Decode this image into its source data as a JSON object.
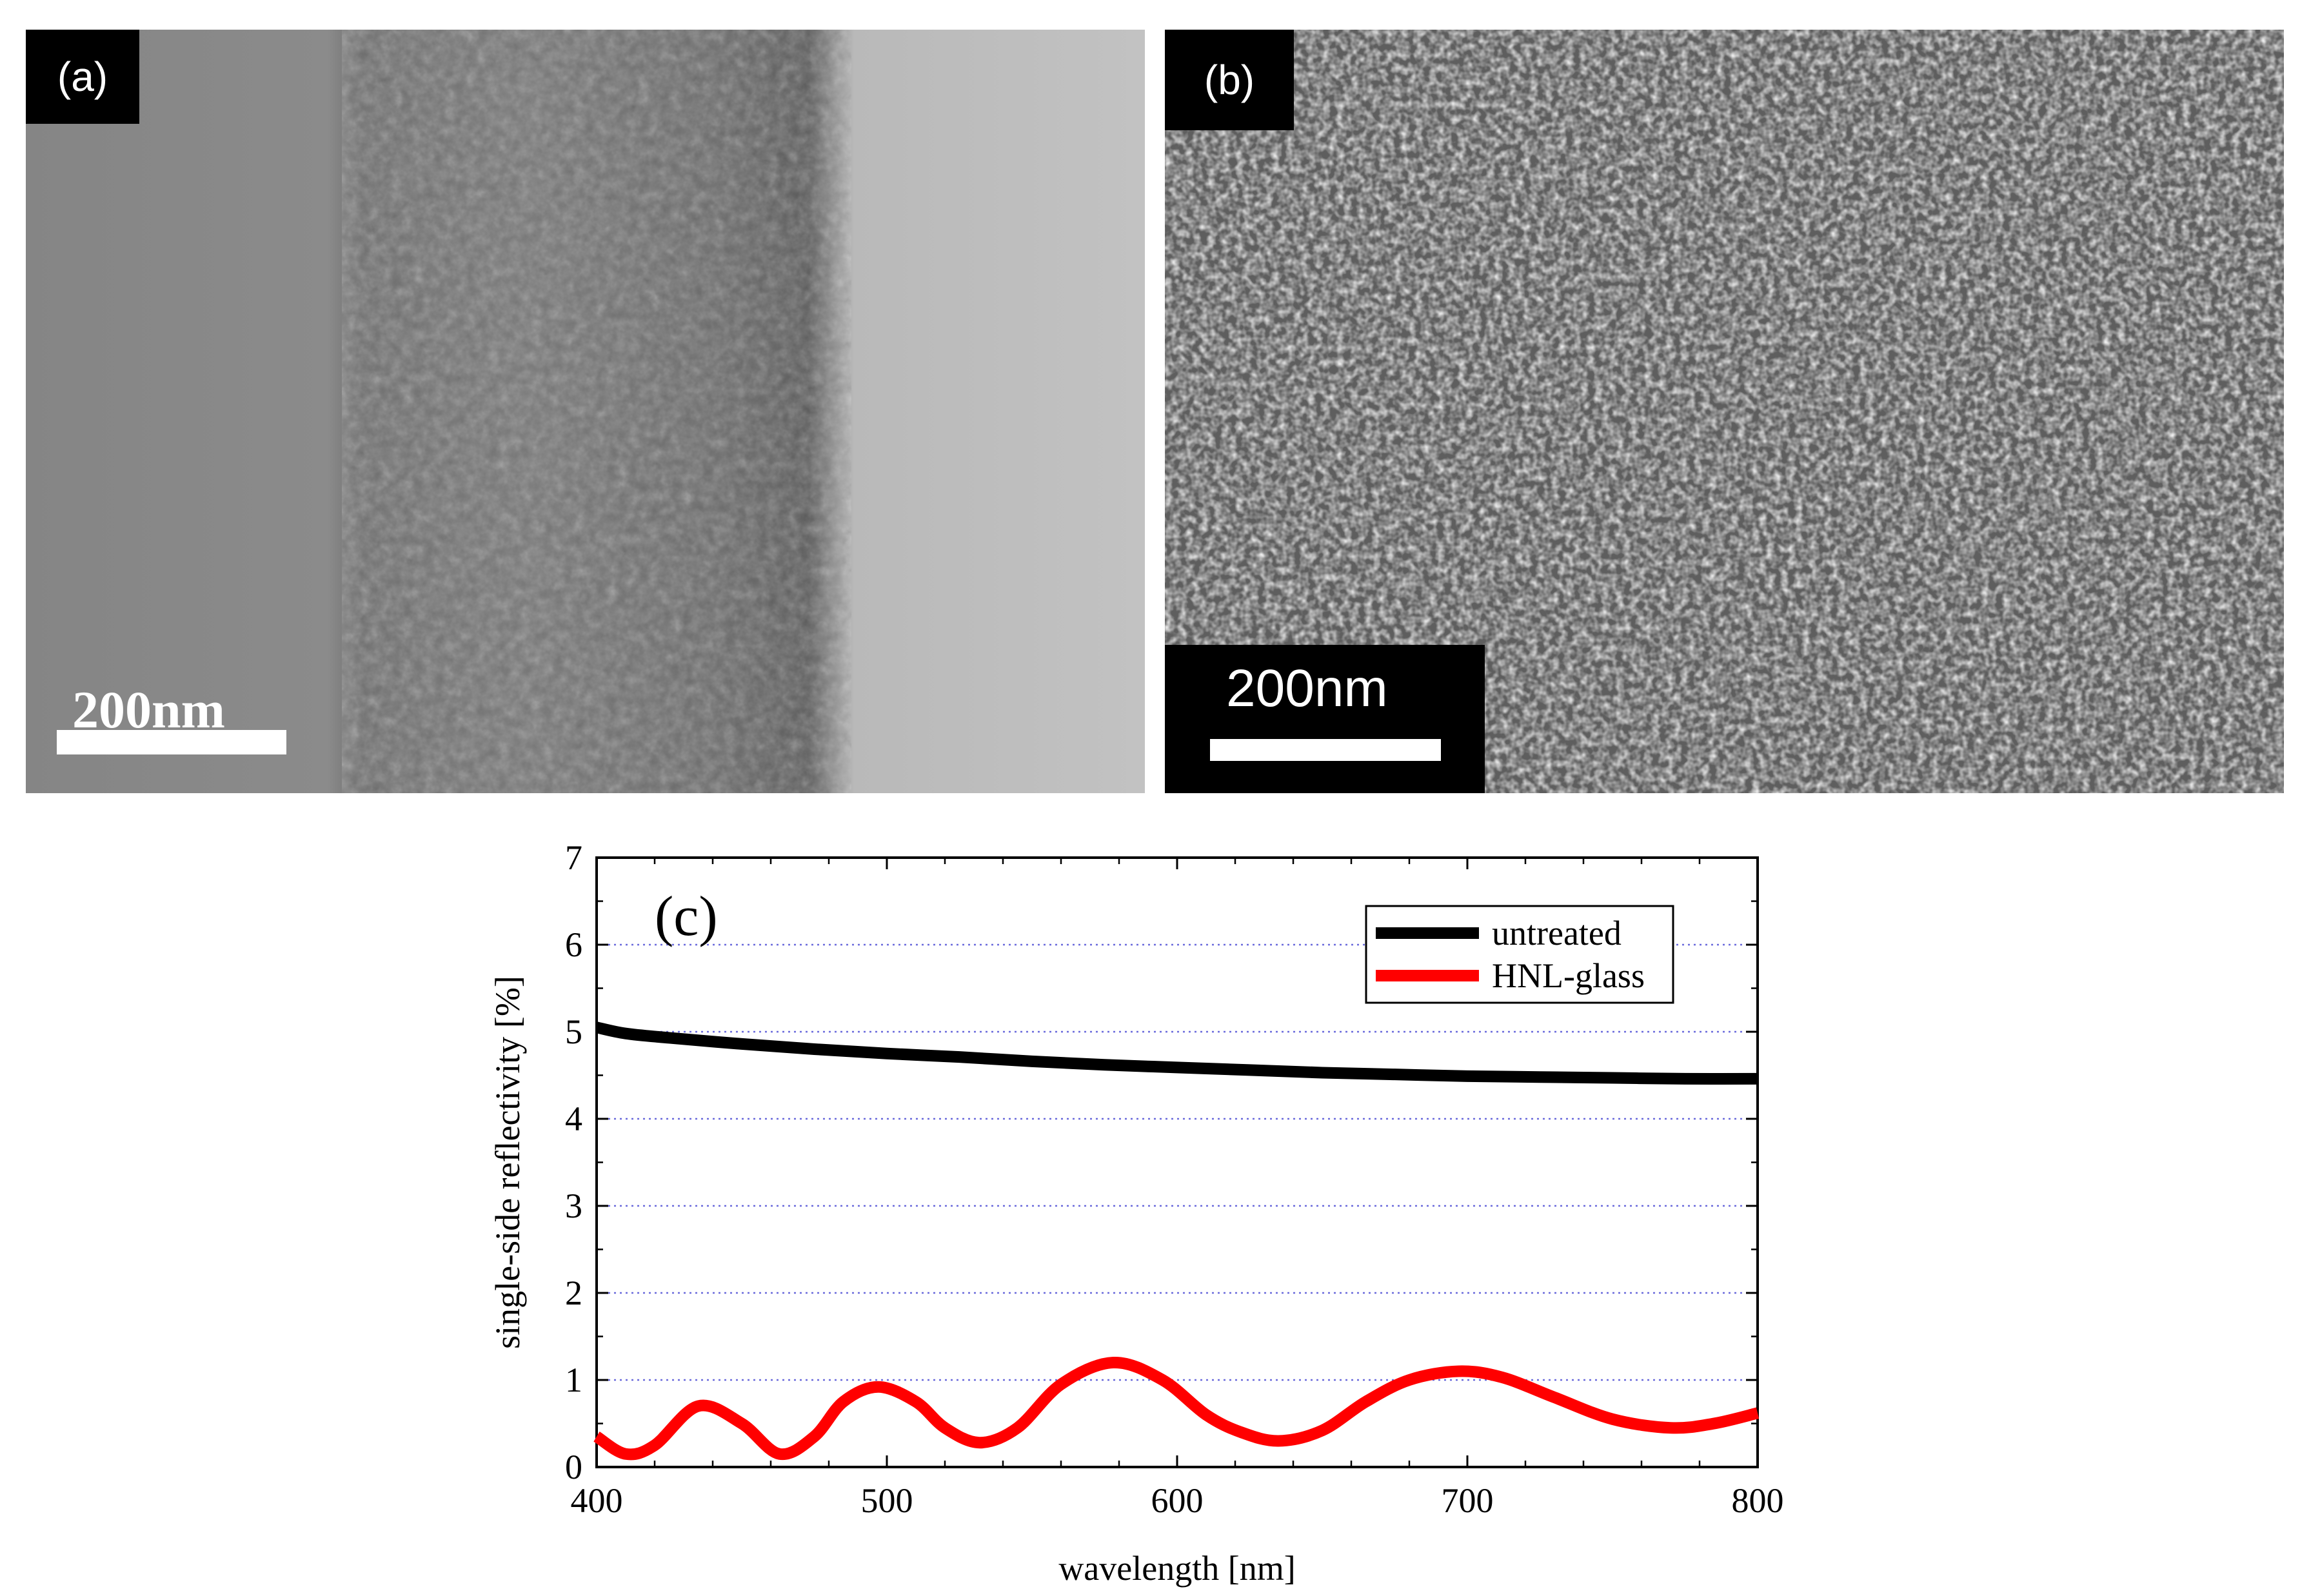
{
  "panels": {
    "a": {
      "label": "(a)",
      "scale_bar": "200nm"
    },
    "b": {
      "label": "(b)",
      "scale_bar": "200nm"
    }
  },
  "chart_data": {
    "type": "line",
    "panel_label": "(c)",
    "xlabel": "wavelength [nm]",
    "ylabel": "single-side reflectivity [%]",
    "xlim": [
      400,
      800
    ],
    "ylim": [
      0,
      7
    ],
    "xticks": [
      400,
      500,
      600,
      700,
      800
    ],
    "yticks": [
      0,
      1,
      2,
      3,
      4,
      5,
      6,
      7
    ],
    "grid": "horizontal dotted",
    "legend_position": "top-right",
    "series": [
      {
        "name": "untreated",
        "color": "#000000",
        "x": [
          400,
          410,
          425,
          450,
          475,
          500,
          525,
          550,
          575,
          600,
          625,
          650,
          675,
          700,
          725,
          750,
          775,
          800
        ],
        "y": [
          5.05,
          4.98,
          4.93,
          4.86,
          4.8,
          4.75,
          4.71,
          4.66,
          4.62,
          4.59,
          4.56,
          4.53,
          4.51,
          4.49,
          4.48,
          4.47,
          4.46,
          4.46
        ]
      },
      {
        "name": "HNL-glass",
        "color": "#ff0000",
        "x": [
          400,
          410,
          420,
          435,
          450,
          463,
          475,
          485,
          497,
          510,
          520,
          532,
          545,
          560,
          578,
          595,
          610,
          622,
          635,
          650,
          665,
          680,
          697,
          712,
          730,
          750,
          770,
          785,
          800
        ],
        "y": [
          0.35,
          0.15,
          0.25,
          0.7,
          0.5,
          0.15,
          0.35,
          0.75,
          0.92,
          0.75,
          0.45,
          0.28,
          0.45,
          0.95,
          1.2,
          1.0,
          0.6,
          0.4,
          0.3,
          0.42,
          0.75,
          1.0,
          1.1,
          1.03,
          0.8,
          0.55,
          0.45,
          0.5,
          0.62
        ]
      }
    ]
  }
}
